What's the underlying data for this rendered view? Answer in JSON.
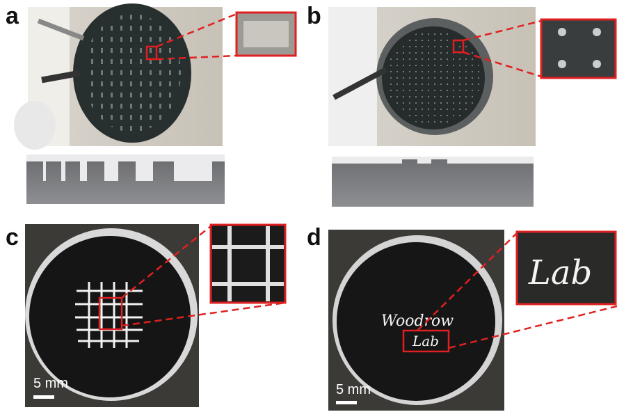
{
  "panels": [
    {
      "label": "a"
    },
    {
      "label": "b"
    },
    {
      "label": "c",
      "scale_bar": "5 mm"
    },
    {
      "label": "d",
      "scale_bar": "5 mm",
      "writing": [
        "Woodrow",
        "Lab"
      ],
      "inset_text": "Lab"
    }
  ]
}
